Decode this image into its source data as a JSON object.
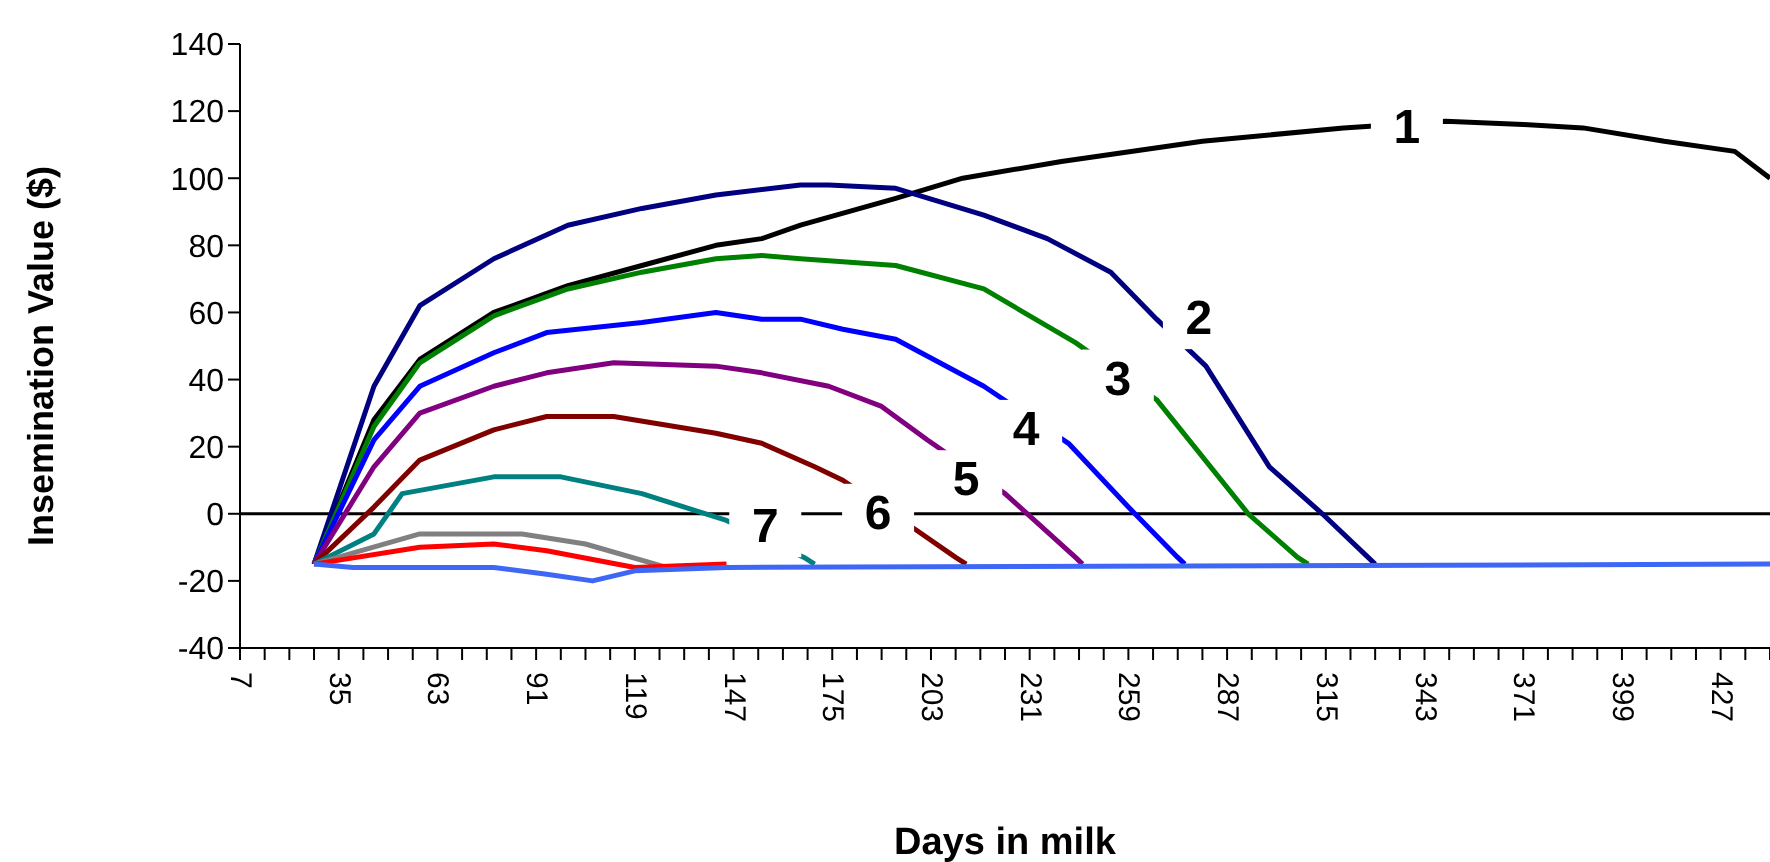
{
  "chart_data": {
    "type": "line",
    "xlabel": "Days in milk",
    "ylabel": "Insemination Value ($)",
    "xlim": [
      7,
      441
    ],
    "ylim": [
      -40,
      140
    ],
    "xticks": [
      7,
      {
        "value": 14,
        "label": null
      },
      {
        "value": 21,
        "label": null
      },
      {
        "value": 28,
        "label": null
      },
      35,
      {
        "value": 42,
        "label": null
      },
      {
        "value": 49,
        "label": null
      },
      {
        "value": 56,
        "label": null
      },
      63,
      {
        "value": 70,
        "label": null
      },
      {
        "value": 77,
        "label": null
      },
      {
        "value": 84,
        "label": null
      },
      91,
      {
        "value": 98,
        "label": null
      },
      {
        "value": 105,
        "label": null
      },
      {
        "value": 112,
        "label": null
      },
      119,
      {
        "value": 126,
        "label": null
      },
      {
        "value": 133,
        "label": null
      },
      {
        "value": 140,
        "label": null
      },
      147,
      {
        "value": 154,
        "label": null
      },
      {
        "value": 161,
        "label": null
      },
      {
        "value": 168,
        "label": null
      },
      175,
      {
        "value": 182,
        "label": null
      },
      {
        "value": 189,
        "label": null
      },
      {
        "value": 196,
        "label": null
      },
      203,
      {
        "value": 210,
        "label": null
      },
      {
        "value": 217,
        "label": null
      },
      {
        "value": 224,
        "label": null
      },
      231,
      {
        "value": 238,
        "label": null
      },
      {
        "value": 245,
        "label": null
      },
      {
        "value": 252,
        "label": null
      },
      259,
      {
        "value": 266,
        "label": null
      },
      {
        "value": 273,
        "label": null
      },
      {
        "value": 280,
        "label": null
      },
      287,
      {
        "value": 294,
        "label": null
      },
      {
        "value": 301,
        "label": null
      },
      {
        "value": 308,
        "label": null
      },
      315,
      {
        "value": 322,
        "label": null
      },
      {
        "value": 329,
        "label": null
      },
      {
        "value": 336,
        "label": null
      },
      343,
      {
        "value": 350,
        "label": null
      },
      {
        "value": 357,
        "label": null
      },
      {
        "value": 364,
        "label": null
      },
      371,
      {
        "value": 378,
        "label": null
      },
      {
        "value": 385,
        "label": null
      },
      {
        "value": 392,
        "label": null
      },
      399,
      {
        "value": 406,
        "label": null
      },
      {
        "value": 413,
        "label": null
      },
      {
        "value": 420,
        "label": null
      },
      427,
      {
        "value": 434,
        "label": null
      },
      {
        "value": 441,
        "label": null
      }
    ],
    "yticks": [
      -40,
      -20,
      0,
      20,
      40,
      60,
      80,
      100,
      120,
      140
    ],
    "grid": false,
    "legend": false,
    "marker": "none",
    "line_style": "solid",
    "ref_lines": [
      {
        "axis": "y",
        "value": 0,
        "color": "#000000"
      }
    ],
    "series": [
      {
        "color": "#000000",
        "x": [
          28,
          45,
          58,
          79,
          100,
          121,
          142,
          155,
          166,
          193,
          212,
          240,
          280,
          320,
          349,
          371,
          388,
          411,
          431,
          441
        ],
        "values": [
          -15,
          28,
          46,
          60,
          68,
          74,
          80,
          82,
          86,
          94,
          100,
          105,
          111,
          115,
          117,
          116,
          115,
          111,
          108,
          100
        ]
      },
      {
        "color": "#000080",
        "x": [
          28,
          45,
          58,
          79,
          100,
          121,
          142,
          166,
          174,
          193,
          218,
          236,
          254,
          267,
          281,
          299,
          314,
          327,
          329
        ],
        "values": [
          -15,
          38,
          62,
          76,
          86,
          91,
          95,
          98,
          98,
          97,
          89,
          82,
          72,
          58,
          44,
          14,
          0,
          -13,
          -15
        ]
      },
      {
        "color": "#008000",
        "x": [
          28,
          45,
          58,
          79,
          100,
          121,
          142,
          155,
          166,
          193,
          218,
          244,
          267,
          293,
          307,
          310
        ],
        "values": [
          -15,
          26,
          45,
          59,
          67,
          72,
          76,
          77,
          76,
          74,
          67,
          51,
          34,
          0,
          -13,
          -15
        ]
      },
      {
        "color": "#0000ff",
        "x": [
          28,
          45,
          58,
          79,
          94,
          121,
          142,
          155,
          166,
          178,
          193,
          218,
          242,
          259,
          273,
          275
        ],
        "values": [
          -15,
          22,
          38,
          48,
          54,
          57,
          60,
          58,
          58,
          55,
          52,
          38,
          21,
          2,
          -13,
          -15
        ]
      },
      {
        "color": "#800080",
        "x": [
          28,
          45,
          58,
          79,
          94,
          113,
          142,
          155,
          174,
          189,
          202,
          224,
          244,
          246
        ],
        "values": [
          -15,
          14,
          30,
          38,
          42,
          45,
          44,
          42,
          38,
          32,
          22,
          6,
          -13,
          -15
        ]
      },
      {
        "color": "#800000",
        "x": [
          28,
          45,
          58,
          79,
          94,
          113,
          142,
          155,
          170,
          178,
          199,
          210,
          213
        ],
        "values": [
          -15,
          2,
          16,
          25,
          29,
          29,
          24,
          21,
          14,
          10,
          -5,
          -13,
          -15
        ]
      },
      {
        "color": "#008080",
        "x": [
          28,
          45,
          53,
          79,
          98,
          121,
          145,
          167,
          170
        ],
        "values": [
          -15,
          -6,
          6,
          11,
          11,
          6,
          -2,
          -13,
          -15
        ]
      },
      {
        "color": "#808080",
        "x": [
          28,
          58,
          87,
          105,
          128,
          145
        ],
        "values": [
          -15,
          -6,
          -6,
          -9,
          -16,
          -16
        ]
      },
      {
        "color": "#ff0000",
        "x": [
          28,
          58,
          79,
          94,
          119,
          145
        ],
        "values": [
          -15,
          -10,
          -9,
          -11,
          -16,
          -15
        ]
      },
      {
        "color": "#3f67f5",
        "x": [
          28,
          39,
          79,
          94,
          107,
          119,
          145,
          441
        ],
        "values": [
          -15,
          -16,
          -16,
          -18,
          -20,
          -17,
          -16,
          -15
        ]
      }
    ],
    "annotations": [
      {
        "text": "1",
        "x": 338,
        "y": 115
      },
      {
        "text": "2",
        "x": 279,
        "y": 58
      },
      {
        "text": "3",
        "x": 256,
        "y": 40
      },
      {
        "text": "4",
        "x": 230,
        "y": 25
      },
      {
        "text": "5",
        "x": 213,
        "y": 10
      },
      {
        "text": "6",
        "x": 188,
        "y": 0
      },
      {
        "text": "7",
        "x": 156,
        "y": -4
      }
    ]
  }
}
